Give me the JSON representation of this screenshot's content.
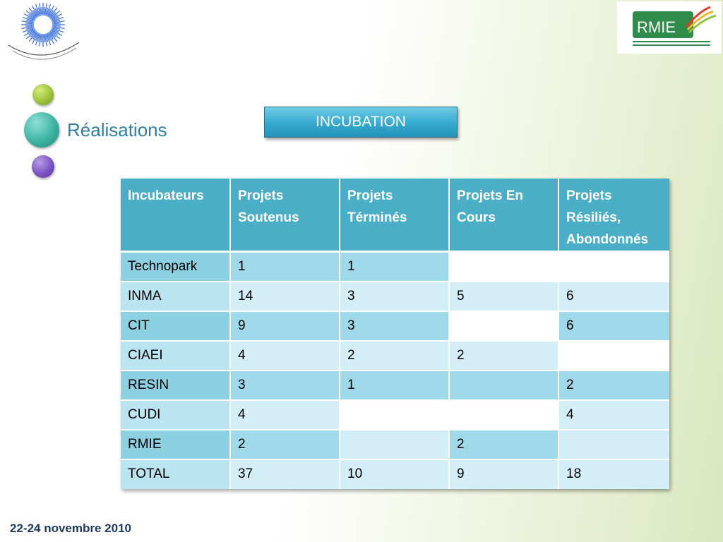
{
  "logos": {
    "left": "sun-emblem-logo",
    "right": "RMIE"
  },
  "section": {
    "title": "Réalisations"
  },
  "button": {
    "label": "INCUBATION"
  },
  "table": {
    "headers": [
      "Incubateurs",
      "Projets Soutenus",
      "Projets Términés",
      "Projets En Cours",
      "Projets Résiliés, Abondonnés"
    ],
    "rows": [
      {
        "incubateur": "Technopark",
        "soutenus": "1",
        "termines": "1",
        "en_cours": "",
        "resilies": ""
      },
      {
        "incubateur": "INMA",
        "soutenus": "14",
        "termines": "3",
        "en_cours": "5",
        "resilies": "6"
      },
      {
        "incubateur": "CIT",
        "soutenus": "9",
        "termines": "3",
        "en_cours": "",
        "resilies": "6"
      },
      {
        "incubateur": "CIAEI",
        "soutenus": "4",
        "termines": "2",
        "en_cours": "2",
        "resilies": ""
      },
      {
        "incubateur": "RESIN",
        "soutenus": "3",
        "termines": "1",
        "en_cours": "",
        "resilies": "2"
      },
      {
        "incubateur": "CUDI",
        "soutenus": "4",
        "termines": "",
        "en_cours": "",
        "resilies": "4"
      },
      {
        "incubateur": "RMIE",
        "soutenus": "2",
        "termines": "",
        "en_cours": "2",
        "resilies": ""
      },
      {
        "incubateur": "TOTAL",
        "soutenus": "37",
        "termines": "10",
        "en_cours": "9",
        "resilies": "18"
      }
    ]
  },
  "footer": {
    "date": "22-24 novembre 2010"
  }
}
